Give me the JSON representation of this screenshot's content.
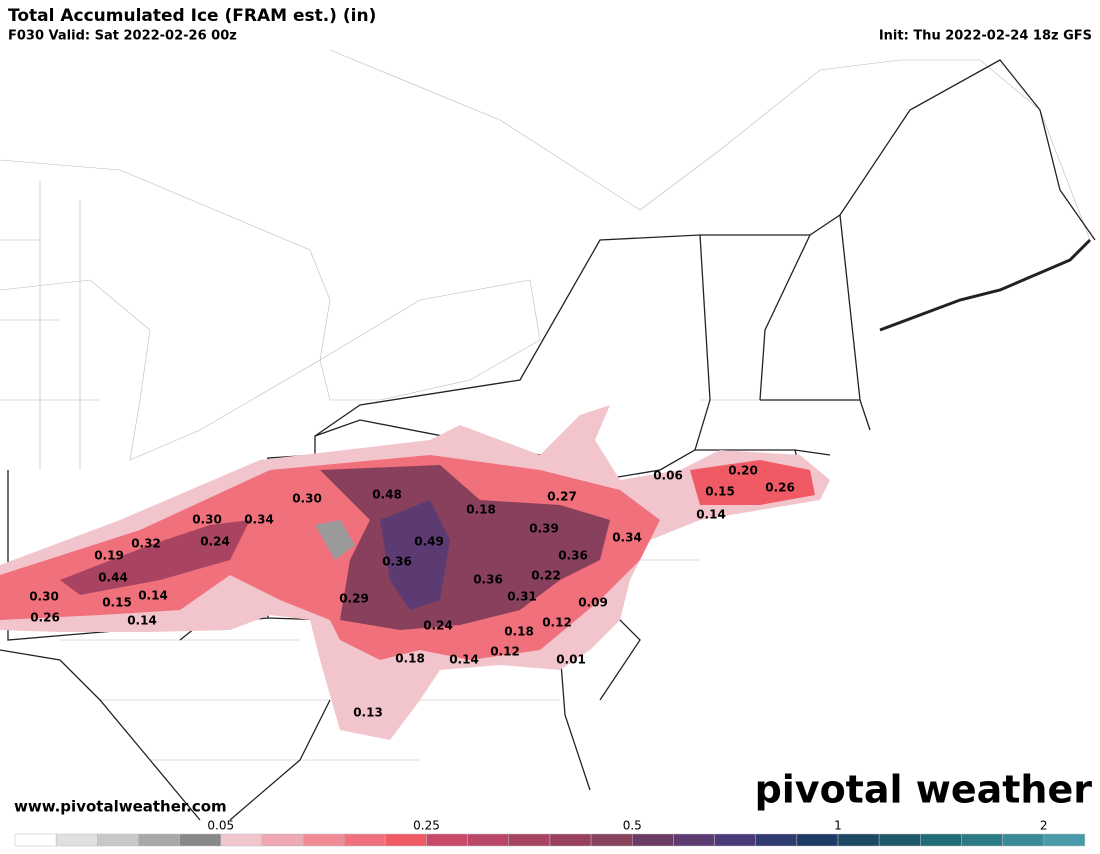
{
  "header": {
    "title": "Total Accumulated Ice (FRAM est.) (in)",
    "valid": "F030 Valid: Sat 2022-02-26 00z",
    "init": "Init: Thu 2022-02-24 18z GFS"
  },
  "point_labels": [
    "0.30",
    "0.48",
    "0.18",
    "0.27",
    "0.06",
    "0.20",
    "0.15",
    "0.26",
    "0.14",
    "0.30",
    "0.34",
    "0.39",
    "0.34",
    "0.32",
    "0.24",
    "0.49",
    "0.19",
    "0.36",
    "0.36",
    "0.44",
    "0.36",
    "0.22",
    "0.30",
    "0.14",
    "0.15",
    "0.29",
    "0.31",
    "0.09",
    "0.26",
    "0.14",
    "0.24",
    "0.18",
    "0.12",
    "0.18",
    "0.14",
    "0.12",
    "0.01",
    "0.13"
  ],
  "colorbar": {
    "colors": [
      "#ffffff",
      "#e0e0e0",
      "#c8c8c8",
      "#a8a8a8",
      "#888888",
      "#f2c4cc",
      "#f0a8b4",
      "#f08c98",
      "#f0707c",
      "#f05a64",
      "#c84a68",
      "#b84666",
      "#a84462",
      "#98405e",
      "#88405c",
      "#6e3a66",
      "#5c3a72",
      "#4a3a7a",
      "#2e3a70",
      "#1e3868",
      "#1c4a62",
      "#1e5a6a",
      "#226a76",
      "#2c7a86",
      "#388a96",
      "#4a9aaa"
    ],
    "ticks": [
      0.05,
      0.25,
      0.5,
      1,
      2
    ]
  },
  "watermark": {
    "url": "www.pivotalweather.com",
    "brand": "pivotal weather"
  }
}
